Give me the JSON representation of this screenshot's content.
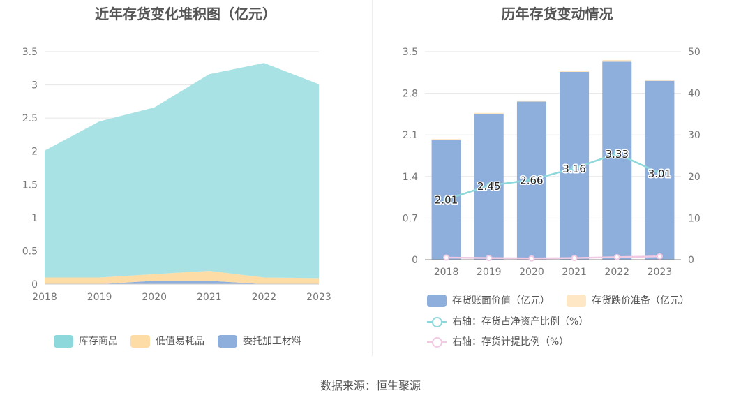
{
  "footer": {
    "source": "数据来源：恒生聚源"
  },
  "chart_data": [
    {
      "type": "area",
      "title": "近年存货变化堆积图（亿元）",
      "x": [
        "2018",
        "2019",
        "2020",
        "2021",
        "2022",
        "2023"
      ],
      "ylim": [
        0,
        3.5
      ],
      "yticks": [
        "0",
        "0.5",
        "1",
        "1.5",
        "2",
        "2.5",
        "3",
        "3.5"
      ],
      "stacked": true,
      "series": [
        {
          "name": "委托加工材料",
          "color": "#8eaedc",
          "values": [
            0.0,
            0.0,
            0.05,
            0.05,
            0.0,
            0.0
          ]
        },
        {
          "name": "低值易耗品",
          "color": "#fddca6",
          "values": [
            0.1,
            0.1,
            0.1,
            0.15,
            0.1,
            0.09
          ]
        },
        {
          "name": "库存商品",
          "color": "#a9e2e4",
          "values": [
            1.91,
            2.35,
            2.51,
            2.96,
            3.23,
            2.92
          ]
        }
      ],
      "legend": [
        "库存商品",
        "低值易耗品",
        "委托加工材料"
      ],
      "legend_colors": [
        "#8dd8da",
        "#fddca6",
        "#8eaedc"
      ],
      "legend_position": "bottom"
    },
    {
      "type": "bar",
      "title": "历年存货变动情况",
      "categories": [
        "2018",
        "2019",
        "2020",
        "2021",
        "2022",
        "2023"
      ],
      "ylim_left": [
        0,
        3.5
      ],
      "yticks_left": [
        "0",
        "0.7",
        "1.4",
        "2.1",
        "2.8",
        "3.5"
      ],
      "ylim_right": [
        0,
        50
      ],
      "yticks_right": [
        "0",
        "10",
        "20",
        "30",
        "40",
        "50"
      ],
      "bar_series": [
        {
          "name": "存货账面价值（亿元）",
          "color": "#8eaedc",
          "values": [
            2.01,
            2.45,
            2.66,
            3.16,
            3.33,
            3.01
          ]
        },
        {
          "name": "存货跌价准备（亿元）",
          "color": "#fde7c4",
          "values": [
            0.02,
            0.02,
            0.02,
            0.02,
            0.03,
            0.02
          ]
        }
      ],
      "line_series": [
        {
          "name": "右轴：存货占净资产比例（%）",
          "color": "#8dd8da",
          "axis": "right",
          "values": [
            14.5,
            17.8,
            19.2,
            22.0,
            25.5,
            20.8
          ]
        },
        {
          "name": "右轴：存货计提比例（%）",
          "color": "#f0c9e3",
          "axis": "right",
          "values": [
            0.5,
            0.4,
            0.3,
            0.4,
            0.6,
            0.8
          ]
        }
      ],
      "data_labels": [
        "2.01",
        "2.45",
        "2.66",
        "3.16",
        "3.33",
        "3.01"
      ],
      "legend_position": "bottom"
    }
  ]
}
